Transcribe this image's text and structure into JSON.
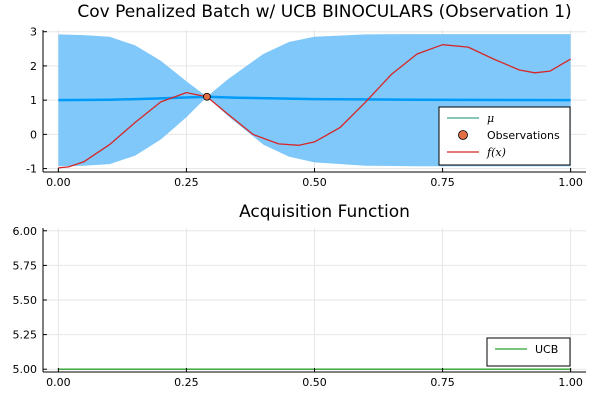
{
  "chart_data": [
    {
      "type": "line",
      "title": "Cov Penalized Batch w/ UCB BINOCULARS (Observation 1)",
      "xlim": [
        -0.03,
        1.03
      ],
      "ylim": [
        -1.1,
        3.05
      ],
      "xticks": [
        0.0,
        0.25,
        0.5,
        0.75,
        1.0
      ],
      "xtick_labels": [
        "0.00",
        "0.25",
        "0.50",
        "0.75",
        "1.00"
      ],
      "yticks": [
        -1,
        0,
        1,
        2,
        3
      ],
      "ytick_labels": [
        "-1",
        "0",
        "1",
        "2",
        "3"
      ],
      "grid": true,
      "legend_position": "bottom-right",
      "band": {
        "x": [
          0.0,
          0.05,
          0.1,
          0.15,
          0.2,
          0.25,
          0.29,
          0.33,
          0.4,
          0.45,
          0.5,
          0.6,
          0.7,
          0.8,
          0.9,
          1.0
        ],
        "upper": [
          2.92,
          2.9,
          2.85,
          2.6,
          2.15,
          1.55,
          1.1,
          1.6,
          2.35,
          2.7,
          2.85,
          2.92,
          2.93,
          2.93,
          2.93,
          2.93
        ],
        "lower": [
          -0.93,
          -0.92,
          -0.87,
          -0.62,
          -0.15,
          0.5,
          1.1,
          0.55,
          -0.3,
          -0.65,
          -0.82,
          -0.92,
          -0.93,
          -0.93,
          -0.93,
          -0.93
        ],
        "color": "#80c8fa"
      },
      "series": [
        {
          "name": "μ",
          "color": "#009af9",
          "x": [
            0.0,
            0.1,
            0.2,
            0.29,
            0.35,
            0.5,
            0.7,
            1.0
          ],
          "y": [
            1.0,
            1.01,
            1.05,
            1.1,
            1.07,
            1.03,
            1.01,
            1.0
          ]
        },
        {
          "name": "f(x)",
          "color": "#d62728",
          "x": [
            0.0,
            0.02,
            0.05,
            0.1,
            0.15,
            0.2,
            0.25,
            0.29,
            0.33,
            0.38,
            0.43,
            0.47,
            0.5,
            0.55,
            0.6,
            0.65,
            0.7,
            0.75,
            0.8,
            0.85,
            0.9,
            0.93,
            0.96,
            1.0
          ],
          "y": [
            -0.98,
            -0.95,
            -0.8,
            -0.3,
            0.35,
            0.95,
            1.22,
            1.1,
            0.6,
            0.0,
            -0.28,
            -0.32,
            -0.22,
            0.2,
            0.95,
            1.75,
            2.35,
            2.62,
            2.55,
            2.2,
            1.88,
            1.8,
            1.85,
            2.2
          ]
        }
      ],
      "observations": {
        "name": "Observations",
        "color": "#e26f46",
        "x": [
          0.29
        ],
        "y": [
          1.1
        ]
      },
      "legend": [
        {
          "kind": "line",
          "label": "μ",
          "color": "#3da58a"
        },
        {
          "kind": "marker",
          "label": "Observations",
          "color": "#e26f46"
        },
        {
          "kind": "line",
          "label": "f(x)",
          "color": "#d62728"
        }
      ]
    },
    {
      "type": "line",
      "title": "Acquisition Function",
      "xlim": [
        -0.03,
        1.03
      ],
      "ylim": [
        4.98,
        6.02
      ],
      "xticks": [
        0.0,
        0.25,
        0.5,
        0.75,
        1.0
      ],
      "xtick_labels": [
        "0.00",
        "0.25",
        "0.50",
        "0.75",
        "1.00"
      ],
      "yticks": [
        5.0,
        5.25,
        5.5,
        5.75,
        6.0
      ],
      "ytick_labels": [
        "5.00",
        "5.25",
        "5.50",
        "5.75",
        "6.00"
      ],
      "grid": true,
      "legend_position": "bottom-right",
      "series": [
        {
          "name": "UCB",
          "color": "#2ca02c",
          "x": [
            0.0,
            1.0
          ],
          "y": [
            5.0,
            5.0
          ]
        }
      ],
      "legend": [
        {
          "kind": "line",
          "label": "UCB",
          "color": "#2ca02c"
        }
      ]
    }
  ]
}
